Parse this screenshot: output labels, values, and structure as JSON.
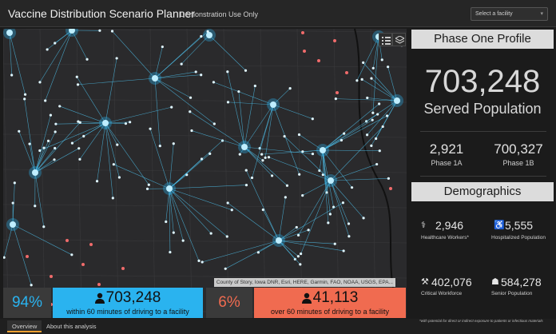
{
  "header": {
    "title": "Vaccine Distribution Scenario Planner",
    "subtitle": "Demonstration Use Only",
    "facility_select": {
      "value": "Select a facility"
    }
  },
  "map": {
    "attribution": "County of Story, Iowa DNR, Esri, HERE, Garmin, FAO, NOAA, USGS, EPA...",
    "buttons": [
      {
        "icon": "legend-list-icon"
      },
      {
        "icon": "layers-icon"
      }
    ]
  },
  "stats": {
    "within": {
      "percent": "94%",
      "count": "703,248",
      "label": "within 60 minutes of driving to a facility",
      "color": "#2ab3ef"
    },
    "over": {
      "percent": "6%",
      "count": "41,113",
      "label": "over 60 minutes of driving to a facility",
      "color": "#f06b50"
    }
  },
  "tabs": [
    {
      "label": "Overview",
      "active": true
    },
    {
      "label": "About this analysis",
      "active": false
    }
  ],
  "phase_one": {
    "heading": "Phase One Profile",
    "served_value": "703,248",
    "served_label": "Served Population",
    "phase_1a": {
      "value": "2,921",
      "label": "Phase 1A"
    },
    "phase_1b": {
      "value": "700,327",
      "label": "Phase 1B"
    }
  },
  "demographics": {
    "heading": "Demographics",
    "items": [
      {
        "icon": "healthcare-worker-icon",
        "value": "2,946",
        "label": "Healthcare Workers*"
      },
      {
        "icon": "hospitalized-icon",
        "value": "5,555",
        "label": "Hospitalized Population"
      },
      {
        "icon": "critical-workforce-icon",
        "value": "402,076",
        "label": "Critical Workforce"
      },
      {
        "icon": "senior-icon",
        "value": "584,278",
        "label": "Senior Population"
      }
    ],
    "footnote": "*with potential for direct or indirect exposure to patients or infectious materials"
  }
}
